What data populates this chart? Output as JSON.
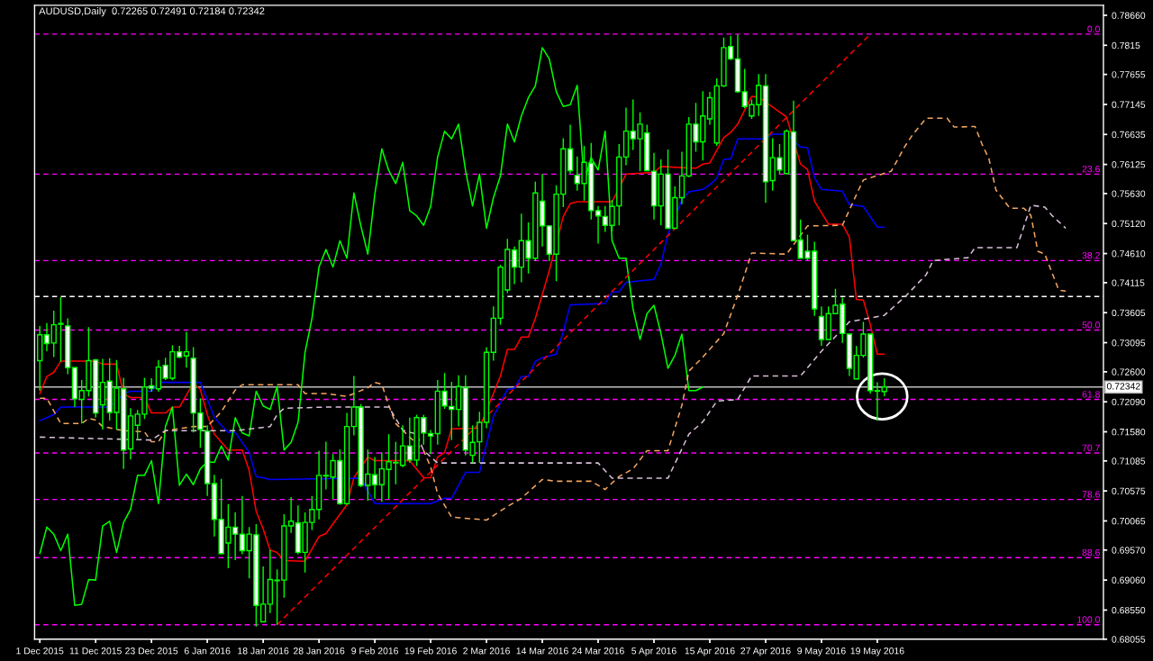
{
  "chart_data": {
    "type": "candlestick",
    "title": "AUDUSD,Daily  0.72265 0.72491 0.72184 0.72342",
    "categories": [
      "1 Dec 2015",
      null,
      null,
      null,
      null,
      null,
      null,
      null,
      "11 Dec 2015",
      null,
      null,
      null,
      null,
      null,
      null,
      null,
      "23 Dec 2015",
      null,
      null,
      null,
      null,
      null,
      null,
      null,
      "6 Jan 2016",
      null,
      null,
      null,
      null,
      null,
      null,
      null,
      "18 Jan 2016",
      null,
      null,
      null,
      null,
      null,
      null,
      null,
      "28 Jan 2016",
      null,
      null,
      null,
      null,
      null,
      null,
      null,
      "9 Feb 2016",
      null,
      null,
      null,
      null,
      null,
      null,
      null,
      "19 Feb 2016",
      null,
      null,
      null,
      null,
      null,
      null,
      null,
      "2 Mar 2016",
      null,
      null,
      null,
      null,
      null,
      null,
      null,
      "14 Mar 2016",
      null,
      null,
      null,
      null,
      null,
      null,
      null,
      "24 Mar 2016",
      null,
      null,
      null,
      null,
      null,
      null,
      null,
      "5 Apr 2016",
      null,
      null,
      null,
      null,
      null,
      null,
      null,
      "15 Apr 2016",
      null,
      null,
      null,
      null,
      null,
      null,
      null,
      "27 Apr 2016",
      null,
      null,
      null,
      null,
      null,
      null,
      null,
      "9 May 2016",
      null,
      null,
      null,
      null,
      null,
      null,
      null,
      "19 May 2016",
      null,
      null,
      null,
      null,
      null,
      null,
      null,
      null,
      null,
      null,
      null,
      null,
      null,
      null,
      null,
      null,
      null,
      null,
      null,
      null,
      null,
      null,
      null,
      null,
      null,
      null,
      null,
      null,
      null,
      null,
      null,
      null
    ],
    "ylim": [
      0.68055,
      0.7883
    ],
    "yticks": [
      {
        "value": 0.7866,
        "label": "0.78660"
      },
      0.7815,
      0.77655,
      0.77145,
      0.76635,
      0.76125,
      {
        "value": 0.7563,
        "label": "0.75630"
      },
      {
        "value": 0.7512,
        "label": "0.75120"
      },
      {
        "value": 0.7461,
        "label": "0.74610"
      },
      0.74115,
      0.73605,
      0.73095,
      {
        "value": 0.726,
        "label": "0.72600"
      },
      {
        "value": 0.7209,
        "label": "0.72090"
      },
      {
        "value": 0.7158,
        "label": "0.71580"
      },
      0.71085,
      0.70575,
      0.70065,
      {
        "value": 0.6957,
        "label": "0.69570"
      },
      {
        "value": 0.6906,
        "label": "0.69060"
      },
      {
        "value": 0.6855,
        "label": "0.68550"
      },
      0.68055
    ],
    "series": [
      {
        "color": "#00ff00",
        "ohlc": [
          [
            0.7279,
            0.7338,
            0.7228,
            0.7323
          ],
          [
            0.7323,
            0.7343,
            0.7295,
            0.7308
          ],
          [
            0.7309,
            0.7364,
            0.7285,
            0.734
          ],
          [
            0.7341,
            0.7387,
            0.7277,
            0.7342
          ],
          [
            0.7338,
            0.7351,
            0.7256,
            0.7267
          ],
          [
            0.7267,
            0.7268,
            0.72,
            0.7214
          ],
          [
            0.7213,
            0.7246,
            0.7172,
            0.7228
          ],
          [
            0.7228,
            0.7336,
            0.7218,
            0.7279
          ],
          [
            0.728,
            0.7282,
            0.7182,
            0.719
          ],
          [
            0.7204,
            0.7282,
            0.7162,
            0.7242
          ],
          [
            0.7244,
            0.7283,
            0.7177,
            0.7191
          ],
          [
            0.7191,
            0.728,
            0.7162,
            0.7232
          ],
          [
            0.7231,
            0.725,
            0.7095,
            0.7127
          ],
          [
            0.7129,
            0.7198,
            0.7111,
            0.7185
          ],
          [
            0.7169,
            0.7195,
            0.7144,
            0.7188
          ],
          [
            0.7188,
            0.725,
            0.718,
            0.7234
          ],
          [
            0.7236,
            0.7249,
            0.7226,
            0.7232
          ],
          [
            0.7231,
            0.728,
            0.7226,
            0.7268
          ],
          [
            0.7271,
            0.7284,
            0.7246,
            0.7249
          ],
          [
            0.7249,
            0.7305,
            0.7246,
            0.7294
          ],
          [
            0.7294,
            0.7304,
            0.7283,
            0.7285
          ],
          [
            0.7287,
            0.7328,
            0.7267,
            0.7294
          ],
          [
            0.7283,
            0.7302,
            0.7157,
            0.719
          ],
          [
            0.719,
            0.7215,
            0.7131,
            0.7162
          ],
          [
            0.7159,
            0.7169,
            0.7049,
            0.707
          ],
          [
            0.707,
            0.7085,
            0.698,
            0.7009
          ],
          [
            0.7009,
            0.7078,
            0.695,
            0.6951
          ],
          [
            0.6969,
            0.7035,
            0.6926,
            0.6996
          ],
          [
            0.6996,
            0.7021,
            0.694,
            0.6984
          ],
          [
            0.6984,
            0.7049,
            0.695,
            0.6956
          ],
          [
            0.6956,
            0.6996,
            0.6909,
            0.6984
          ],
          [
            0.6983,
            0.7001,
            0.6827,
            0.6863
          ],
          [
            0.6835,
            0.6929,
            0.6835,
            0.6865
          ],
          [
            0.6865,
            0.6957,
            0.685,
            0.6907
          ],
          [
            0.6905,
            0.6924,
            0.683,
            0.6906
          ],
          [
            0.6906,
            0.7018,
            0.6876,
            0.6998
          ],
          [
            0.6998,
            0.7047,
            0.6986,
            0.7006
          ],
          [
            0.7003,
            0.7033,
            0.695,
            0.6953
          ],
          [
            0.6953,
            0.7021,
            0.6919,
            0.7004
          ],
          [
            0.7004,
            0.7049,
            0.6991,
            0.7026
          ],
          [
            0.7026,
            0.7126,
            0.7009,
            0.7084
          ],
          [
            0.7083,
            0.7141,
            0.706,
            0.7084
          ],
          [
            0.7081,
            0.712,
            0.7044,
            0.7109
          ],
          [
            0.7109,
            0.7128,
            0.7034,
            0.7036
          ],
          [
            0.7036,
            0.719,
            0.7034,
            0.7167
          ],
          [
            0.7167,
            0.7253,
            0.7152,
            0.72
          ],
          [
            0.72,
            0.7205,
            0.7064,
            0.7067
          ],
          [
            0.7067,
            0.7128,
            0.7041,
            0.7086
          ],
          [
            0.7085,
            0.7115,
            0.7044,
            0.7068
          ],
          [
            0.7068,
            0.7123,
            0.7039,
            0.7095
          ],
          [
            0.7094,
            0.7154,
            0.7044,
            0.7107
          ],
          [
            0.7105,
            0.7141,
            0.7069,
            0.7106
          ],
          [
            0.7101,
            0.7169,
            0.7098,
            0.7134
          ],
          [
            0.7134,
            0.7182,
            0.7105,
            0.711
          ],
          [
            0.711,
            0.7187,
            0.71,
            0.7182
          ],
          [
            0.7182,
            0.7187,
            0.7136,
            0.7156
          ],
          [
            0.7155,
            0.7161,
            0.712,
            0.7151
          ],
          [
            0.7155,
            0.7246,
            0.7136,
            0.7227
          ],
          [
            0.7227,
            0.7258,
            0.7197,
            0.7202
          ],
          [
            0.7201,
            0.7243,
            0.7144,
            0.7196
          ],
          [
            0.7196,
            0.7254,
            0.7167,
            0.7235
          ],
          [
            0.7233,
            0.7254,
            0.7118,
            0.7127
          ],
          [
            0.7118,
            0.7169,
            0.7105,
            0.714
          ],
          [
            0.7141,
            0.7192,
            0.7105,
            0.7174
          ],
          [
            0.7174,
            0.7302,
            0.7164,
            0.7293
          ],
          [
            0.7293,
            0.7371,
            0.7279,
            0.7351
          ],
          [
            0.7351,
            0.7442,
            0.734,
            0.7438
          ],
          [
            0.7399,
            0.7486,
            0.7394,
            0.7468
          ],
          [
            0.7467,
            0.7473,
            0.7409,
            0.7438
          ],
          [
            0.7438,
            0.7529,
            0.7412,
            0.7483
          ],
          [
            0.7483,
            0.7514,
            0.7427,
            0.7453
          ],
          [
            0.7453,
            0.7583,
            0.7448,
            0.7564
          ],
          [
            0.755,
            0.7596,
            0.7473,
            0.7508
          ],
          [
            0.7508,
            0.7509,
            0.7448,
            0.746
          ],
          [
            0.746,
            0.7577,
            0.7414,
            0.7562
          ],
          [
            0.7562,
            0.7657,
            0.754,
            0.7639
          ],
          [
            0.7639,
            0.768,
            0.7597,
            0.7602
          ],
          [
            0.7594,
            0.7626,
            0.7568,
            0.758
          ],
          [
            0.758,
            0.7644,
            0.7551,
            0.7616
          ],
          [
            0.7615,
            0.7649,
            0.7519,
            0.7534
          ],
          [
            0.7534,
            0.7542,
            0.7478,
            0.7525
          ],
          [
            0.7524,
            0.7542,
            0.7498,
            0.7509
          ],
          [
            0.7509,
            0.7552,
            0.7499,
            0.7541
          ],
          [
            0.7542,
            0.7647,
            0.7509,
            0.7625
          ],
          [
            0.7625,
            0.7709,
            0.7611,
            0.7669
          ],
          [
            0.7669,
            0.7723,
            0.7637,
            0.7656
          ],
          [
            0.7656,
            0.7701,
            0.7601,
            0.7681
          ],
          [
            0.7666,
            0.768,
            0.7601,
            0.7602
          ],
          [
            0.7601,
            0.7632,
            0.7519,
            0.7542
          ],
          [
            0.7542,
            0.7621,
            0.7509,
            0.7596
          ],
          [
            0.7596,
            0.7638,
            0.7504,
            0.7504
          ],
          [
            0.7504,
            0.7575,
            0.7503,
            0.7556
          ],
          [
            0.7556,
            0.7634,
            0.7545,
            0.7593
          ],
          [
            0.7593,
            0.7693,
            0.7591,
            0.7681
          ],
          [
            0.7681,
            0.7717,
            0.7634,
            0.7651
          ],
          [
            0.7651,
            0.7737,
            0.7619,
            0.7695
          ],
          [
            0.769,
            0.7736,
            0.768,
            0.7726
          ],
          [
            0.7649,
            0.7759,
            0.7644,
            0.7746
          ],
          [
            0.7746,
            0.7828,
            0.7744,
            0.7811
          ],
          [
            0.7813,
            0.7831,
            0.779,
            0.7792
          ],
          [
            0.7792,
            0.7833,
            0.7734,
            0.7736
          ],
          [
            0.7736,
            0.7775,
            0.7708,
            0.7711
          ],
          [
            0.7695,
            0.7723,
            0.769,
            0.7714
          ],
          [
            0.7714,
            0.7766,
            0.7695,
            0.7747
          ],
          [
            0.7746,
            0.7766,
            0.7547,
            0.7583
          ],
          [
            0.7585,
            0.7657,
            0.7568,
            0.7624
          ],
          [
            0.7624,
            0.7647,
            0.7596,
            0.7603
          ],
          [
            0.7597,
            0.7672,
            0.7596,
            0.7669
          ],
          [
            0.7668,
            0.7721,
            0.7483,
            0.7483
          ],
          [
            0.7484,
            0.7519,
            0.7453,
            0.7453
          ],
          [
            0.7465,
            0.7493,
            0.745,
            0.7453
          ],
          [
            0.7465,
            0.7481,
            0.7355,
            0.7367
          ],
          [
            0.7354,
            0.7371,
            0.7304,
            0.7315
          ],
          [
            0.7315,
            0.7371,
            0.7315,
            0.7359
          ],
          [
            0.7359,
            0.7401,
            0.7358,
            0.7373
          ],
          [
            0.7375,
            0.7386,
            0.7309,
            0.7325
          ],
          [
            0.7324,
            0.7325,
            0.7253,
            0.7266
          ],
          [
            0.7248,
            0.7304,
            0.7248,
            0.7288
          ],
          [
            0.7288,
            0.7345,
            0.7284,
            0.7324
          ],
          [
            0.7324,
            0.7325,
            0.7223,
            0.7228
          ],
          [
            0.7227,
            0.7242,
            0.7177,
            0.7228
          ],
          [
            0.72265,
            0.72491,
            0.72184,
            0.72342
          ],
          null,
          null,
          null,
          null,
          null,
          null,
          null,
          null,
          null,
          null,
          null,
          null,
          null,
          null,
          null,
          null,
          null,
          null,
          null,
          null,
          null,
          null,
          null,
          null,
          null,
          null,
          null,
          null,
          null,
          null,
          null
        ]
      },
      {
        "type": "line",
        "color": "#ff0000",
        "values": [
          0.7223,
          0.7252,
          0.7259,
          0.7278,
          null,
          null,
          null,
          null,
          0.7278,
          0.7273,
          null,
          0.7273,
          0.7223,
          0.7216,
          null,
          0.7216,
          0.719,
          null,
          0.719,
          0.72,
          0.72,
          null,
          0.7241,
          0.723,
          0.7187,
          0.7154,
          null,
          0.7127,
          null,
          0.7127,
          0.7092,
          0.7023,
          0.6993,
          0.6957,
          0.6953,
          0.6939,
          null,
          null,
          0.6938,
          null,
          0.698,
          0.6985,
          null,
          null,
          0.7034,
          0.708,
          null,
          0.7115,
          0.7109,
          null,
          null,
          null,
          null,
          0.7109,
          null,
          0.708,
          0.708,
          0.7115,
          0.7123,
          0.7163,
          null,
          null,
          null,
          0.7164,
          null,
          null,
          0.7253,
          0.7298,
          0.7298,
          0.7319,
          0.7319,
          0.7351,
          null,
          0.7432,
          null,
          0.7524,
          0.7546,
          0.7549,
          null,
          null,
          null,
          null,
          0.7549,
          null,
          0.7596,
          null,
          null,
          null,
          0.7599,
          0.7609,
          null,
          null,
          null,
          null,
          0.7606,
          0.7613,
          0.7615,
          null,
          0.7658,
          0.7667,
          0.7681,
          0.7705,
          0.7728,
          0.7727,
          null,
          null,
          null,
          0.7693,
          null,
          0.7613,
          0.7604,
          0.755,
          null,
          0.7511,
          null,
          0.7511,
          0.7489,
          0.7383,
          0.7382,
          0.734,
          0.729,
          0.729,
          null,
          null,
          null,
          null,
          null,
          null,
          null,
          null,
          null,
          null,
          null,
          null,
          null,
          null,
          null,
          null,
          null,
          null,
          null,
          null,
          null,
          null,
          null,
          null,
          null,
          null,
          null,
          null,
          null,
          null,
          null
        ]
      },
      {
        "type": "line",
        "color": "#0000ff",
        "values": [
          0.7177,
          null,
          0.7187,
          0.72,
          null,
          null,
          null,
          null,
          null,
          null,
          0.72,
          0.721,
          0.7223,
          0.7227,
          null,
          null,
          0.7227,
          0.7242,
          null,
          null,
          null,
          null,
          null,
          0.7242,
          0.7213,
          0.7183,
          0.7169,
          0.7157,
          0.7157,
          null,
          0.7123,
          0.7082,
          0.708,
          0.7077,
          null,
          null,
          null,
          null,
          null,
          null,
          null,
          null,
          null,
          null,
          null,
          null,
          0.7079,
          null,
          0.7036,
          null,
          null,
          null,
          null,
          null,
          null,
          null,
          0.7036,
          null,
          0.7045,
          0.7045,
          null,
          0.7089,
          null,
          0.7089,
          0.7137,
          0.7184,
          null,
          0.723,
          0.7232,
          0.7252,
          0.7252,
          0.7278,
          0.7284,
          null,
          0.729,
          0.7328,
          0.7374,
          null,
          null,
          null,
          null,
          0.7376,
          0.7396,
          0.7396,
          0.7412,
          null,
          null,
          null,
          0.7417,
          0.7443,
          0.7494,
          null,
          0.7552,
          0.7566,
          null,
          0.757,
          0.7578,
          0.7589,
          0.7621,
          0.7622,
          0.7656,
          null,
          null,
          null,
          0.7656,
          0.7664,
          null,
          0.7664,
          null,
          0.7642,
          0.7641,
          0.759,
          0.757,
          null,
          null,
          0.7567,
          0.7544,
          null,
          0.7541,
          null,
          0.7506,
          0.7506,
          null,
          null,
          null,
          null,
          null,
          null,
          null,
          null,
          null,
          null,
          null,
          null,
          null,
          null,
          null,
          null,
          null,
          null,
          null,
          null,
          null,
          null,
          null,
          null,
          null,
          null,
          null,
          null,
          null,
          null,
          null
        ]
      },
      {
        "type": "line",
        "color": "#00ff00",
        "values": [
          0.6951,
          0.6996,
          0.6984,
          0.6956,
          0.6984,
          0.6863,
          0.6865,
          0.6907,
          0.6906,
          0.6998,
          0.7006,
          0.6953,
          0.7004,
          0.7026,
          0.7084,
          0.7084,
          0.7109,
          0.7036,
          0.7167,
          0.72,
          0.7067,
          0.7086,
          0.7068,
          0.7095,
          0.7107,
          0.7106,
          0.7134,
          0.711,
          0.7182,
          0.7156,
          0.7151,
          0.7227,
          0.7202,
          0.7196,
          0.7235,
          0.7127,
          0.714,
          0.7174,
          0.7293,
          0.7351,
          0.7438,
          0.7468,
          0.7438,
          0.7483,
          0.7453,
          0.7564,
          0.7508,
          0.746,
          0.7562,
          0.7639,
          0.7602,
          0.758,
          0.7616,
          0.7534,
          0.7525,
          0.7509,
          0.7541,
          0.7625,
          0.7669,
          0.7656,
          0.7681,
          0.7602,
          0.7542,
          0.7596,
          0.7504,
          0.7556,
          0.7593,
          0.7681,
          0.7651,
          0.7695,
          0.7726,
          0.7746,
          0.7811,
          0.7792,
          0.7736,
          0.7711,
          0.7714,
          0.7747,
          0.7583,
          0.7624,
          0.7603,
          0.7669,
          0.7483,
          0.7453,
          0.7453,
          0.7367,
          0.7315,
          0.7359,
          0.7373,
          0.7325,
          0.7266,
          0.7288,
          0.7324,
          0.7228,
          0.7228,
          0.7234,
          null,
          null,
          null,
          null,
          null,
          null,
          null,
          null,
          null,
          null,
          null,
          null,
          null,
          null,
          null,
          null,
          null,
          null,
          null,
          null,
          null,
          null,
          null,
          null,
          null,
          null,
          null,
          null,
          null,
          null,
          null,
          null,
          null,
          null,
          null,
          null,
          null,
          null,
          null,
          null,
          null,
          null,
          null,
          null,
          null,
          null,
          null,
          null,
          null,
          null,
          null,
          null,
          null,
          null,
          null,
          null,
          null
        ]
      },
      {
        "type": "line",
        "color": "#f4a460",
        "line_style": "dashed",
        "values": [
          0.7215,
          0.7215,
          null,
          0.7172,
          null,
          null,
          0.7172,
          0.7181,
          0.7178,
          0.7167,
          null,
          null,
          0.716,
          null,
          null,
          0.7158,
          0.7141,
          0.7141,
          0.716,
          null,
          null,
          null,
          0.7167,
          null,
          0.7167,
          null,
          0.7192,
          null,
          0.7229,
          0.7238,
          null,
          null,
          null,
          null,
          null,
          null,
          null,
          0.7238,
          0.7223,
          null,
          null,
          0.7223,
          null,
          null,
          0.7218,
          null,
          null,
          0.7233,
          0.7242,
          0.7239,
          0.7203,
          0.7172,
          null,
          0.7149,
          null,
          0.7126,
          0.7098,
          0.7053,
          null,
          0.7013,
          null,
          null,
          null,
          null,
          0.7008,
          null,
          null,
          0.7031,
          null,
          0.7045,
          null,
          null,
          0.7077,
          null,
          0.7074,
          null,
          null,
          null,
          null,
          0.7074,
          null,
          0.706,
          null,
          0.7082,
          null,
          0.7095,
          null,
          0.7126,
          null,
          null,
          0.7126,
          null,
          0.7203,
          0.7261,
          null,
          0.7285,
          null,
          null,
          0.7325,
          null,
          0.739,
          null,
          0.7462,
          null,
          null,
          null,
          null,
          0.746,
          null,
          null,
          0.7508,
          null,
          null,
          null,
          null,
          0.7509,
          null,
          0.7561,
          0.7586,
          null,
          null,
          null,
          0.7601,
          null,
          0.7644,
          0.7662,
          null,
          0.7691,
          null,
          null,
          0.7691,
          0.7676,
          null,
          null,
          0.7677,
          0.7647,
          0.7622,
          0.7569,
          null,
          0.7538,
          null,
          0.7538,
          0.7526,
          0.7465,
          0.746,
          null,
          0.7399,
          0.7397,
          null,
          null,
          null,
          null,
          null
        ]
      },
      {
        "type": "line",
        "color": "#d8bfd8",
        "line_style": "dashed",
        "values": [
          0.7149,
          null,
          null,
          null,
          null,
          null,
          null,
          null,
          null,
          null,
          null,
          null,
          null,
          null,
          null,
          null,
          0.7144,
          null,
          0.716,
          null,
          null,
          null,
          null,
          null,
          null,
          null,
          null,
          null,
          0.716,
          null,
          null,
          null,
          null,
          0.7167,
          0.7187,
          0.7198,
          null,
          null,
          null,
          null,
          null,
          0.72,
          null,
          null,
          null,
          null,
          null,
          null,
          null,
          null,
          0.72,
          null,
          0.7161,
          null,
          0.7154,
          0.7126,
          null,
          0.7105,
          null,
          null,
          null,
          null,
          null,
          null,
          null,
          null,
          null,
          null,
          null,
          null,
          null,
          null,
          null,
          null,
          null,
          null,
          null,
          null,
          null,
          null,
          0.7105,
          null,
          0.7079,
          null,
          null,
          null,
          null,
          null,
          null,
          null,
          0.7079,
          null,
          null,
          0.7154,
          null,
          0.7175,
          null,
          0.721,
          null,
          null,
          0.7213,
          null,
          0.7253,
          null,
          null,
          null,
          null,
          null,
          null,
          0.7253,
          null,
          null,
          0.7295,
          null,
          null,
          null,
          0.7345,
          null,
          null,
          null,
          null,
          0.7356,
          null,
          null,
          0.7388,
          null,
          null,
          0.7425,
          0.7449,
          null,
          null,
          null,
          null,
          0.7454,
          0.7471,
          null,
          null,
          null,
          null,
          null,
          0.7471,
          null,
          0.7543,
          null,
          0.754,
          0.7526,
          null,
          0.7504,
          null,
          null,
          null,
          null,
          null
        ]
      },
      {
        "type": "line",
        "color": "#ff0000",
        "line_style": "dashed",
        "values": [
          null,
          null,
          null,
          null,
          null,
          null,
          null,
          null,
          null,
          null,
          null,
          null,
          null,
          null,
          null,
          null,
          null,
          null,
          null,
          null,
          null,
          null,
          null,
          null,
          null,
          null,
          null,
          null,
          null,
          null,
          null,
          null,
          null,
          null,
          0.683,
          null,
          null,
          null,
          null,
          null,
          null,
          null,
          null,
          null,
          null,
          null,
          null,
          null,
          null,
          null,
          null,
          null,
          null,
          null,
          null,
          null,
          null,
          null,
          null,
          null,
          null,
          null,
          null,
          null,
          null,
          null,
          null,
          null,
          null,
          null,
          null,
          null,
          null,
          null,
          null,
          null,
          null,
          null,
          null,
          null,
          null,
          null,
          null,
          null,
          null,
          null,
          null,
          null,
          null,
          null,
          null,
          null,
          null,
          null,
          null,
          null,
          null,
          null,
          null,
          null,
          null,
          null,
          null,
          null,
          null,
          null,
          null,
          null,
          null,
          null,
          null,
          null,
          null,
          null,
          null,
          null,
          null,
          null,
          null,
          0.7834,
          null,
          null,
          null,
          null,
          null,
          null,
          null,
          null,
          null,
          null,
          null,
          null,
          null,
          null,
          null,
          null,
          null,
          null,
          null,
          null,
          null,
          null,
          null,
          null,
          null,
          null,
          null,
          null,
          null,
          null,
          null,
          null,
          null
        ]
      }
    ],
    "ref_lines": [
      {
        "axis": "y",
        "value": 0.7834,
        "color": "#ff00ff",
        "line_style": "dashed"
      },
      {
        "axis": "y",
        "value": 0.7596,
        "color": "#ff00ff",
        "line_style": "dashed"
      },
      {
        "axis": "y",
        "value": 0.7449,
        "color": "#ff00ff",
        "line_style": "dashed"
      },
      {
        "axis": "y",
        "value": 0.7331,
        "color": "#ff00ff",
        "line_style": "dashed"
      },
      {
        "axis": "y",
        "value": 0.7213,
        "color": "#ff00ff",
        "line_style": "dashed"
      },
      {
        "axis": "y",
        "value": 0.7122,
        "color": "#ff00ff",
        "line_style": "dashed"
      },
      {
        "axis": "y",
        "value": 0.7043,
        "color": "#ff00ff",
        "line_style": "dashed"
      },
      {
        "axis": "y",
        "value": 0.6944,
        "color": "#ff00ff",
        "line_style": "dashed"
      },
      {
        "axis": "y",
        "value": 0.683,
        "color": "#ff00ff",
        "line_style": "dashed"
      },
      {
        "axis": "y",
        "value": 0.7388,
        "color": "#ffffff",
        "line_style": "dashed"
      },
      {
        "axis": "y",
        "value": 0.72342,
        "label": "0.72342",
        "color": "#c0c0c0",
        "line_style": "solid"
      }
    ],
    "annotations": [
      {
        "text": "0.0",
        "y": 0.7834
      },
      {
        "text": "23.6",
        "y": 0.7596
      },
      {
        "text": "38.2",
        "y": 0.7449
      },
      {
        "text": "50.0",
        "y": 0.7331
      },
      {
        "text": "61.8",
        "y": 0.7213
      },
      {
        "text": "70.7",
        "y": 0.7122
      },
      {
        "text": "78.6",
        "y": 0.7043
      },
      {
        "text": "88.6",
        "y": 0.6944
      },
      {
        "text": "100.0",
        "y": 0.683
      }
    ]
  }
}
